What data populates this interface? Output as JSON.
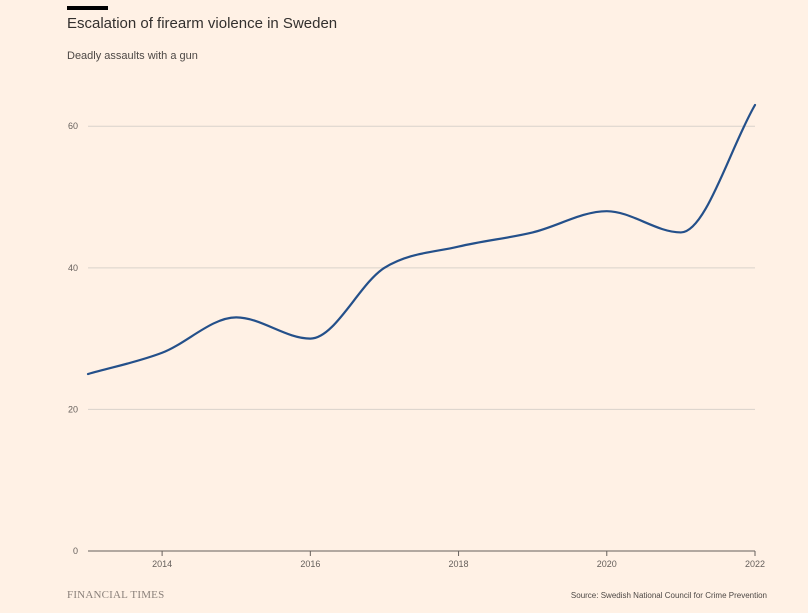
{
  "header": {
    "title": "Escalation of firearm violence in Sweden",
    "subtitle": "Deadly assaults with a gun"
  },
  "footer": {
    "brand": "FINANCIAL TIMES",
    "source": "Source: Swedish National Council for Crime Prevention"
  },
  "colors": {
    "background": "#fff1e5",
    "line": "#24508a",
    "grid": "#d9d2cb",
    "axis": "#66605c"
  },
  "chart_data": {
    "type": "line",
    "title": "Escalation of firearm violence in Sweden",
    "subtitle": "Deadly assaults with a gun",
    "xlabel": "",
    "ylabel": "",
    "x": [
      2013,
      2014,
      2015,
      2016,
      2017,
      2018,
      2019,
      2020,
      2021,
      2022
    ],
    "series": [
      {
        "values": [
          25,
          28,
          33,
          30,
          40,
          43,
          45,
          48,
          45,
          63
        ]
      }
    ],
    "xticks": [
      "2014",
      "2016",
      "2018",
      "2020",
      "2022"
    ],
    "yticks": [
      "0",
      "20",
      "40",
      "60"
    ],
    "xlim": [
      2013,
      2022
    ],
    "ylim": [
      0,
      63
    ],
    "grid": true,
    "legend": "none"
  }
}
